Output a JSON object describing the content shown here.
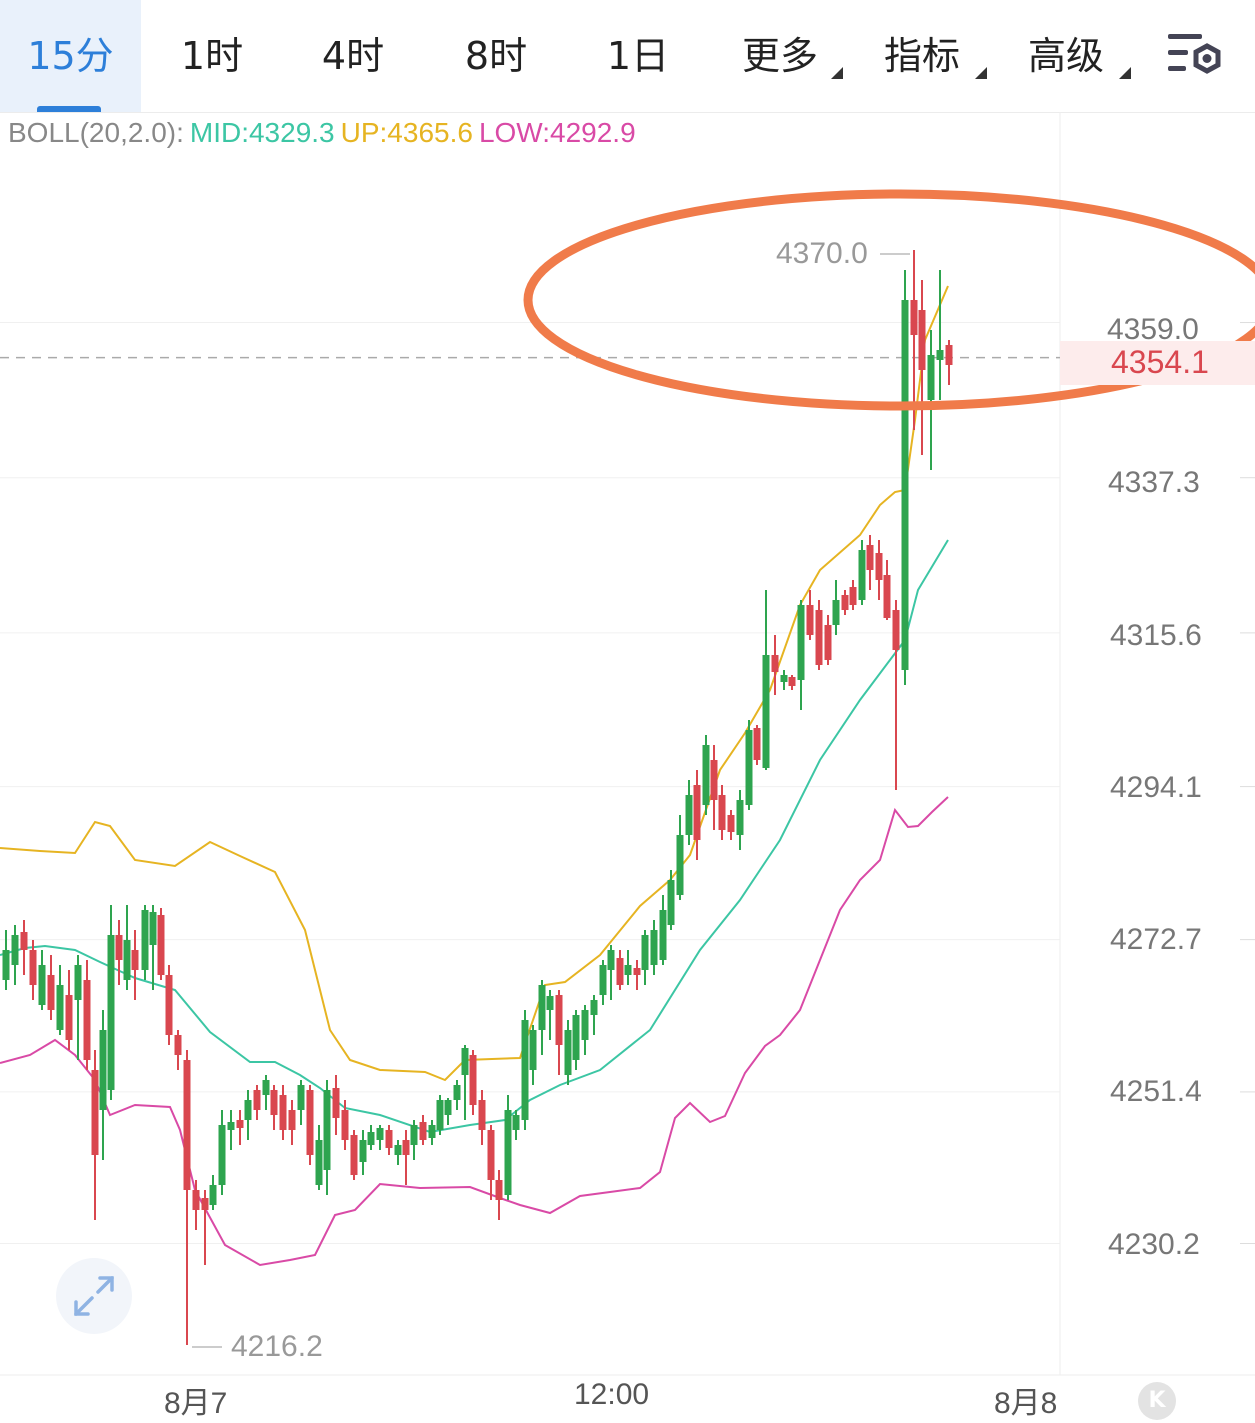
{
  "tabs": [
    {
      "label": "15分",
      "active": true
    },
    {
      "label": "1时"
    },
    {
      "label": "4时"
    },
    {
      "label": "8时"
    },
    {
      "label": "1日"
    },
    {
      "label": "更多",
      "dropdown": true
    },
    {
      "label": "指标",
      "dropdown": true
    },
    {
      "label": "高级",
      "dropdown": true
    }
  ],
  "settings_icon": "chart-settings-icon",
  "indicator": {
    "name": "BOLL(20,2.0):",
    "mid": "MID:4329.3",
    "up": "UP:4365.6",
    "low": "LOW:4292.9"
  },
  "y_axis": [
    "4359.0",
    "4337.3",
    "4315.6",
    "4294.1",
    "4272.7",
    "4251.4",
    "4230.2"
  ],
  "current_price": "4354.1",
  "high_label": "4370.0",
  "low_label": "4216.2",
  "x_axis": [
    "8月7",
    "12:00",
    "8月8"
  ],
  "k_button": "K",
  "colors": {
    "up": "#2ea44f",
    "down": "#d9474f",
    "mid": "#3cc6a4",
    "upper": "#e6b422",
    "lower": "#d94aa6",
    "accent": "#2d7fd9",
    "highlight_ellipse": "#f07b4a"
  }
}
